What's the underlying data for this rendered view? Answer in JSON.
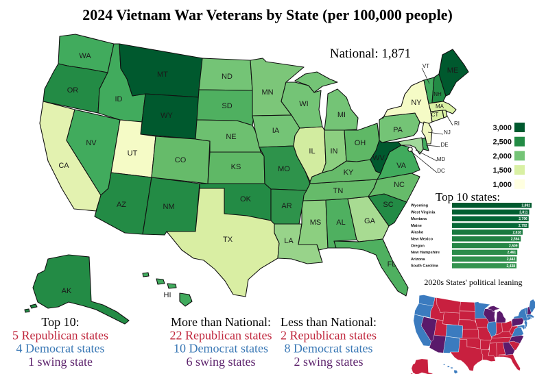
{
  "title": "2024 Vietnam War Veterans by State (per 100,000 people)",
  "national": "National: 1,871",
  "legend": [
    {
      "label": "3,000",
      "color": "#00592e"
    },
    {
      "label": "2,500",
      "color": "#238b45"
    },
    {
      "label": "2,000",
      "color": "#74c476"
    },
    {
      "label": "1,500",
      "color": "#d9f0a3"
    },
    {
      "label": "1,000",
      "color": "#ffffe0"
    }
  ],
  "top10": {
    "title": "Top 10 states:",
    "rows": [
      {
        "state": "Wyoming",
        "value": 2882,
        "label": "2,882"
      },
      {
        "state": "West Virginia",
        "value": 2811,
        "label": "2,811"
      },
      {
        "state": "Montana",
        "value": 2796,
        "label": "2,796"
      },
      {
        "state": "Maine",
        "value": 2792,
        "label": "2,792"
      },
      {
        "state": "Alaska",
        "value": 2618,
        "label": "2,618"
      },
      {
        "state": "New Mexico",
        "value": 2564,
        "label": "2,564"
      },
      {
        "state": "Oregon",
        "value": 2509,
        "label": "2,509"
      },
      {
        "state": "New Hampshire",
        "value": 2461,
        "label": "2,461"
      },
      {
        "state": "Arizona",
        "value": 2442,
        "label": "2,442"
      },
      {
        "state": "South Carolina",
        "value": 2438,
        "label": "2,438"
      }
    ]
  },
  "political": {
    "title": "2020s States' political leaning",
    "colors": {
      "R": "#c8203f",
      "D": "#3b7bbf",
      "S": "#5a1a6b"
    }
  },
  "summary": [
    {
      "heading": "Top 10:",
      "rep": "5 Republican states",
      "dem": "4 Democrat states",
      "swing": "1 swing state"
    },
    {
      "heading": "More than National:",
      "rep": "22 Republican states",
      "dem": "10 Democrat states",
      "swing": "6 swing states"
    },
    {
      "heading": "Less than National:",
      "rep": "2 Republican states",
      "dem": "8 Democrat states",
      "swing": "2 swing states"
    }
  ],
  "text_colors": {
    "rep": "#c0283e",
    "dem": "#3a78b5",
    "swing": "#5a1f6a"
  },
  "states": [
    {
      "abbr": "WA",
      "color": "#41ab5d",
      "lean": "D"
    },
    {
      "abbr": "OR",
      "color": "#238b45",
      "lean": "D"
    },
    {
      "abbr": "CA",
      "color": "#e3f2b0",
      "lean": "D"
    },
    {
      "abbr": "NV",
      "color": "#41ab5d",
      "lean": "S"
    },
    {
      "abbr": "ID",
      "color": "#41ab5d",
      "lean": "R"
    },
    {
      "abbr": "MT",
      "color": "#00592e",
      "lean": "R"
    },
    {
      "abbr": "WY",
      "color": "#00592e",
      "lean": "R"
    },
    {
      "abbr": "UT",
      "color": "#f5fbc6",
      "lean": "R"
    },
    {
      "abbr": "CO",
      "color": "#66bb6a",
      "lean": "D"
    },
    {
      "abbr": "AZ",
      "color": "#238b45",
      "lean": "S"
    },
    {
      "abbr": "NM",
      "color": "#238b45",
      "lean": "D"
    },
    {
      "abbr": "ND",
      "color": "#74c476",
      "lean": "R"
    },
    {
      "abbr": "SD",
      "color": "#4fb060",
      "lean": "R"
    },
    {
      "abbr": "NE",
      "color": "#6dc070",
      "lean": "R"
    },
    {
      "abbr": "KS",
      "color": "#5fb866",
      "lean": "R"
    },
    {
      "abbr": "OK",
      "color": "#238b45",
      "lean": "R"
    },
    {
      "abbr": "TX",
      "color": "#d9eea3",
      "lean": "R"
    },
    {
      "abbr": "MN",
      "color": "#7cc679",
      "lean": "D"
    },
    {
      "abbr": "IA",
      "color": "#74c476",
      "lean": "R"
    },
    {
      "abbr": "MO",
      "color": "#2e934b",
      "lean": "R"
    },
    {
      "abbr": "AR",
      "color": "#2e934b",
      "lean": "R"
    },
    {
      "abbr": "LA",
      "color": "#98d38a",
      "lean": "R"
    },
    {
      "abbr": "MS",
      "color": "#8ccf80",
      "lean": "R"
    },
    {
      "abbr": "AL",
      "color": "#4fb060",
      "lean": "R"
    },
    {
      "abbr": "GA",
      "color": "#a8db92",
      "lean": "S"
    },
    {
      "abbr": "SC",
      "color": "#238b45",
      "lean": "R"
    },
    {
      "abbr": "FL",
      "color": "#4fb060",
      "lean": "R"
    },
    {
      "abbr": "TN",
      "color": "#66bb6a",
      "lean": "R"
    },
    {
      "abbr": "KY",
      "color": "#66bb6a",
      "lean": "R"
    },
    {
      "abbr": "IL",
      "color": "#d2eca0",
      "lean": "D"
    },
    {
      "abbr": "IN",
      "color": "#8ccf80",
      "lean": "R"
    },
    {
      "abbr": "WI",
      "color": "#74c476",
      "lean": "S"
    },
    {
      "abbr": "MI",
      "color": "#74c476",
      "lean": "S"
    },
    {
      "abbr": "OH",
      "color": "#5fb866",
      "lean": "R"
    },
    {
      "abbr": "WV",
      "color": "#00592e",
      "lean": "R"
    },
    {
      "abbr": "VA",
      "color": "#41ab5d",
      "lean": "D"
    },
    {
      "abbr": "NC",
      "color": "#66bb6a",
      "lean": "S"
    },
    {
      "abbr": "PA",
      "color": "#74c476",
      "lean": "S"
    },
    {
      "abbr": "NY",
      "color": "#f5fbc6",
      "lean": "D"
    },
    {
      "abbr": "VT",
      "color": "#41ab5d",
      "lean": "D"
    },
    {
      "abbr": "NH",
      "color": "#238b45",
      "lean": "S"
    },
    {
      "abbr": "ME",
      "color": "#00592e",
      "lean": "D"
    },
    {
      "abbr": "MA",
      "color": "#d9f0a3",
      "lean": "D"
    },
    {
      "abbr": "CT",
      "color": "#d9f0a3",
      "lean": "D"
    },
    {
      "abbr": "RI",
      "color": "#d9f0a3",
      "lean": "D"
    },
    {
      "abbr": "NJ",
      "color": "#f0f8c0",
      "lean": "D"
    },
    {
      "abbr": "DE",
      "color": "#41ab5d",
      "lean": "D"
    },
    {
      "abbr": "MD",
      "color": "#a1d99b",
      "lean": "D"
    },
    {
      "abbr": "DC",
      "color": "#fffff0",
      "lean": "D"
    },
    {
      "abbr": "AK",
      "color": "#238b45",
      "lean": "R"
    },
    {
      "abbr": "HI",
      "color": "#41ab5d",
      "lean": "D"
    }
  ]
}
